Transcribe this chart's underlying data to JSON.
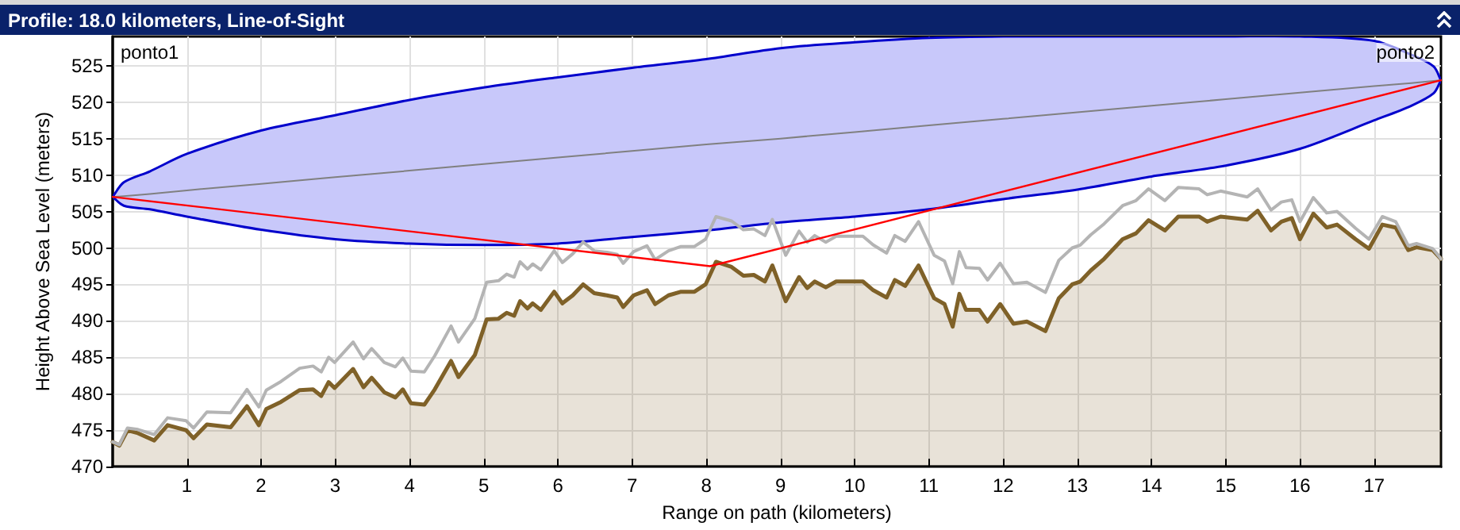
{
  "chart_data": {
    "type": "line",
    "title": "Profile: 18.0 kilometers, Line-of-Sight",
    "xlabel": "Range on path (kilometers)",
    "ylabel": "Height Above Sea Level (meters)",
    "annotations": [
      "ponto1",
      "ponto2"
    ],
    "xlim": [
      0,
      17.9
    ],
    "xticks": [
      1,
      2,
      3,
      4,
      5,
      6,
      7,
      8,
      9,
      10,
      11,
      12,
      13,
      14,
      15,
      16,
      17
    ],
    "ylim": [
      470,
      529
    ],
    "yticks": [
      470,
      475,
      480,
      485,
      490,
      495,
      500,
      505,
      510,
      515,
      520,
      525
    ],
    "grid": true,
    "marker": "none",
    "line_style": "solid",
    "series": [
      {
        "type": "area",
        "color": "#7f6128",
        "x": [
          0,
          0.09,
          0.2,
          0.34,
          0.56,
          0.74,
          0.99,
          1.09,
          1.27,
          1.59,
          1.81,
          1.97,
          2.07,
          2.27,
          2.52,
          2.7,
          2.81,
          2.91,
          2.99,
          3.24,
          3.38,
          3.49,
          3.66,
          3.81,
          3.91,
          4.02,
          4.2,
          4.34,
          4.56,
          4.66,
          4.88,
          5.04,
          5.2,
          5.31,
          5.41,
          5.49,
          5.59,
          5.66,
          5.77,
          5.95,
          6.06,
          6.2,
          6.34,
          6.49,
          6.66,
          6.8,
          6.88,
          7.02,
          7.2,
          7.31,
          7.49,
          7.66,
          7.84,
          7.99,
          8.13,
          8.34,
          8.5,
          8.64,
          8.79,
          8.89,
          9.07,
          9.25,
          9.36,
          9.46,
          9.61,
          9.75,
          10.11,
          10.25,
          10.43,
          10.54,
          10.68,
          10.86,
          11.07,
          11.21,
          11.32,
          11.41,
          11.5,
          11.68,
          11.79,
          11.96,
          12.14,
          12.32,
          12.57,
          12.75,
          12.93,
          13.04,
          13.18,
          13.36,
          13.61,
          13.79,
          13.96,
          14.18,
          14.36,
          14.64,
          14.75,
          14.93,
          15.29,
          15.43,
          15.61,
          15.75,
          15.89,
          16.0,
          16.18,
          16.36,
          16.5,
          16.75,
          16.93,
          17.11,
          17.29,
          17.46,
          17.57,
          17.79,
          17.9
        ],
        "values": [
          473.4,
          472.9,
          475.0,
          474.6,
          473.6,
          475.7,
          475.0,
          473.9,
          475.8,
          475.4,
          478.3,
          475.7,
          477.9,
          478.9,
          480.5,
          480.6,
          479.7,
          481.6,
          480.8,
          483.4,
          480.9,
          482.2,
          480.2,
          479.5,
          480.6,
          478.7,
          478.5,
          480.6,
          484.5,
          482.3,
          485.3,
          490.2,
          490.3,
          491.1,
          490.7,
          492.7,
          491.7,
          492.4,
          491.5,
          494.0,
          492.4,
          493.5,
          495.0,
          493.8,
          493.5,
          493.2,
          491.9,
          493.5,
          494.2,
          492.3,
          493.5,
          494.0,
          494.0,
          495.0,
          498.1,
          497.4,
          496.2,
          496.3,
          495.4,
          497.6,
          492.7,
          496.0,
          494.5,
          495.4,
          494.6,
          495.4,
          495.4,
          494.2,
          493.2,
          495.6,
          494.8,
          497.6,
          493.1,
          492.3,
          489.2,
          493.7,
          491.5,
          491.5,
          489.9,
          492.3,
          489.6,
          489.9,
          488.6,
          493.1,
          495.0,
          495.4,
          496.9,
          498.5,
          501.2,
          502.0,
          503.8,
          502.4,
          504.3,
          504.3,
          503.6,
          504.3,
          503.9,
          505.1,
          502.4,
          503.6,
          504.1,
          501.2,
          504.7,
          502.8,
          503.2,
          501.2,
          499.9,
          503.2,
          502.8,
          499.7,
          500.1,
          499.7,
          498.5
        ]
      },
      {
        "type": "line",
        "color": "#808080",
        "x": [
          0,
          0.15,
          0.5,
          1,
          2,
          3,
          4,
          5,
          6,
          7,
          8,
          9,
          10,
          11,
          12,
          13,
          14,
          15,
          16,
          17,
          17.5,
          17.8,
          17.9
        ],
        "values": [
          507,
          507.1,
          507.4,
          507.9,
          508.8,
          509.7,
          510.6,
          511.5,
          512.4,
          513.3,
          514.2,
          515.0,
          515.9,
          516.8,
          517.7,
          518.6,
          519.5,
          520.4,
          521.3,
          522.2,
          522.6,
          522.9,
          523.0
        ],
        "lower": [
          507,
          505.8,
          505.3,
          504.3,
          502.5,
          501.2,
          500.6,
          500.4,
          500.6,
          501.5,
          502.4,
          503.5,
          504.3,
          505.3,
          506.7,
          508.0,
          509.8,
          511.3,
          513.6,
          517.5,
          519.5,
          521.2,
          523
        ],
        "upper": [
          507,
          509.0,
          510.5,
          512.9,
          516.1,
          518.2,
          520.3,
          522.0,
          523.4,
          524.7,
          525.9,
          527.4,
          528.2,
          528.8,
          529,
          529,
          529,
          529,
          529,
          528.4,
          526.5,
          524.9,
          523
        ]
      },
      {
        "type": "line",
        "color": "#b4b4b4",
        "x": [
          0,
          0.09,
          0.2,
          0.34,
          0.56,
          0.74,
          0.99,
          1.09,
          1.27,
          1.59,
          1.81,
          1.97,
          2.07,
          2.27,
          2.52,
          2.7,
          2.81,
          2.91,
          2.99,
          3.24,
          3.38,
          3.49,
          3.66,
          3.81,
          3.91,
          4.02,
          4.2,
          4.34,
          4.56,
          4.66,
          4.88,
          5.04,
          5.2,
          5.31,
          5.41,
          5.49,
          5.59,
          5.66,
          5.77,
          5.95,
          6.06,
          6.2,
          6.34,
          6.49,
          6.66,
          6.8,
          6.88,
          7.02,
          7.2,
          7.31,
          7.49,
          7.66,
          7.84,
          7.99,
          8.13,
          8.34,
          8.5,
          8.64,
          8.79,
          8.89,
          9.07,
          9.25,
          9.36,
          9.46,
          9.61,
          9.75,
          10.11,
          10.25,
          10.43,
          10.54,
          10.68,
          10.86,
          11.07,
          11.21,
          11.32,
          11.41,
          11.5,
          11.68,
          11.79,
          11.96,
          12.14,
          12.32,
          12.57,
          12.75,
          12.93,
          13.04,
          13.18,
          13.36,
          13.61,
          13.79,
          13.96,
          14.18,
          14.36,
          14.64,
          14.75,
          14.93,
          15.29,
          15.43,
          15.61,
          15.75,
          15.89,
          16.0,
          16.18,
          16.36,
          16.5,
          16.75,
          16.93,
          17.11,
          17.29,
          17.46,
          17.57,
          17.79,
          17.9
        ],
        "values": [
          473.4,
          473.0,
          475.3,
          475.1,
          474.4,
          476.7,
          476.3,
          475.3,
          477.5,
          477.4,
          480.6,
          478.2,
          480.5,
          481.7,
          483.5,
          483.8,
          483.0,
          485.0,
          484.3,
          487.1,
          484.8,
          486.2,
          484.3,
          483.7,
          484.9,
          483.1,
          483.0,
          485.2,
          489.3,
          487.1,
          490.3,
          495.3,
          495.5,
          496.4,
          496.0,
          498.1,
          497.1,
          497.8,
          497.0,
          499.6,
          498.0,
          499.2,
          500.8,
          499.6,
          499.4,
          499.1,
          497.9,
          499.5,
          500.3,
          498.4,
          499.6,
          500.2,
          500.2,
          501.2,
          504.3,
          503.7,
          502.5,
          502.6,
          501.7,
          503.9,
          499.0,
          502.3,
          500.8,
          501.7,
          500.8,
          501.6,
          501.6,
          500.4,
          499.3,
          501.7,
          500.9,
          503.6,
          499.0,
          498.2,
          495.1,
          499.5,
          497.3,
          497.2,
          495.6,
          497.9,
          495.1,
          495.3,
          493.9,
          498.3,
          500.0,
          500.4,
          501.8,
          503.3,
          505.8,
          506.5,
          508.1,
          506.5,
          508.3,
          508.1,
          507.3,
          507.8,
          507.0,
          508.1,
          505.2,
          506.3,
          506.6,
          503.6,
          506.9,
          504.8,
          505.0,
          502.7,
          501.2,
          504.3,
          503.6,
          500.3,
          500.6,
          499.9,
          498.5
        ]
      },
      {
        "type": "line",
        "color": "#ff0000",
        "x": [
          0,
          8.05,
          17.9
        ],
        "values": [
          507,
          497.5,
          523
        ]
      }
    ]
  }
}
